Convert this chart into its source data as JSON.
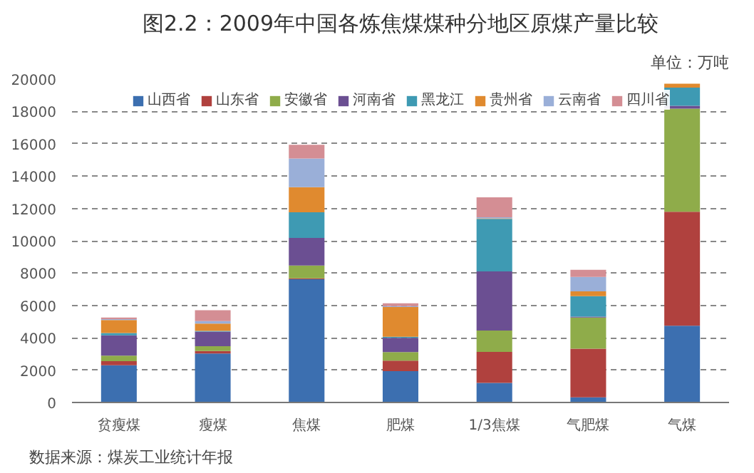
{
  "chart_data": {
    "type": "bar",
    "stacked": true,
    "title": "图2.2：2009年中国各炼焦煤煤种分地区原煤产量比较",
    "ylabel": "单位：万吨",
    "annotations": [
      "数据来源：煤炭工业统计年报"
    ],
    "categories": [
      "贫瘦煤",
      "瘦煤",
      "焦煤",
      "肥煤",
      "1/3焦煤",
      "气肥煤",
      "气煤"
    ],
    "series": [
      {
        "name": "山西省",
        "color": "#3c6fb0",
        "values": [
          2300,
          3030,
          7620,
          1940,
          1210,
          320,
          4750
        ]
      },
      {
        "name": "山东省",
        "color": "#b0413e",
        "values": [
          250,
          150,
          60,
          650,
          1920,
          3010,
          7050
        ]
      },
      {
        "name": "安徽省",
        "color": "#8fac4a",
        "values": [
          350,
          300,
          790,
          530,
          1320,
          1920,
          6370
        ]
      },
      {
        "name": "河南省",
        "color": "#6b4f92",
        "values": [
          1250,
          900,
          1710,
          880,
          3660,
          60,
          180
        ]
      },
      {
        "name": "黑龙江",
        "color": "#3e9ab3",
        "values": [
          150,
          50,
          1580,
          60,
          3250,
          1270,
          1120
        ]
      },
      {
        "name": "贵州省",
        "color": "#e08a2f",
        "values": [
          800,
          450,
          1560,
          1840,
          30,
          290,
          240
        ]
      },
      {
        "name": "云南省",
        "color": "#9aafd8",
        "values": [
          50,
          150,
          1770,
          60,
          60,
          890,
          0
        ]
      },
      {
        "name": "四川省",
        "color": "#d48e94",
        "values": [
          100,
          680,
          850,
          170,
          1240,
          440,
          0
        ]
      }
    ],
    "ylim": [
      0,
      20000
    ],
    "yticks": [
      0,
      2000,
      4000,
      6000,
      8000,
      10000,
      12000,
      14000,
      16000,
      18000,
      20000
    ],
    "grid": "y",
    "legend": "top"
  }
}
